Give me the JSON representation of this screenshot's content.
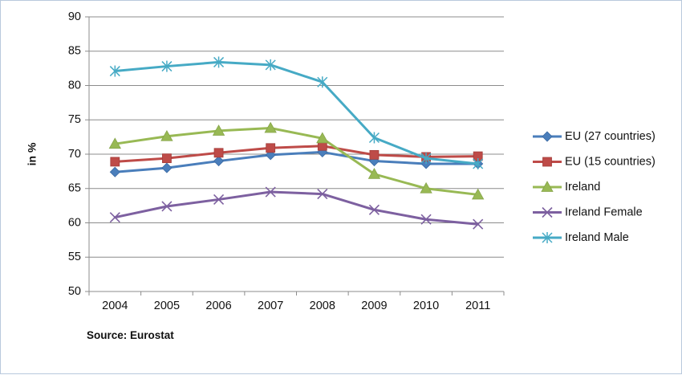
{
  "chart_data": {
    "type": "line",
    "title": "",
    "xlabel": "",
    "ylabel": "in %",
    "source": "Source: Eurostat",
    "categories": [
      "2004",
      "2005",
      "2006",
      "2007",
      "2008",
      "2009",
      "2010",
      "2011"
    ],
    "ylim": [
      50,
      90
    ],
    "yticks": [
      50,
      55,
      60,
      65,
      70,
      75,
      80,
      85,
      90
    ],
    "grid": true,
    "legend_position": "right",
    "series": [
      {
        "name": "EU (27 countries)",
        "color": "#4a7ebb",
        "marker": "diamond",
        "values": [
          67.4,
          68.0,
          69.0,
          69.9,
          70.3,
          69.0,
          68.6,
          68.6
        ]
      },
      {
        "name": "EU (15 countries)",
        "color": "#be4b48",
        "marker": "square",
        "values": [
          68.9,
          69.4,
          70.2,
          70.9,
          71.2,
          69.9,
          69.6,
          69.7
        ]
      },
      {
        "name": "Ireland",
        "color": "#98b954",
        "marker": "triangle",
        "values": [
          71.5,
          72.6,
          73.4,
          73.8,
          72.3,
          67.1,
          65.0,
          64.1
        ]
      },
      {
        "name": "Ireland Female",
        "color": "#7d60a0",
        "marker": "x",
        "values": [
          60.8,
          62.4,
          63.4,
          64.5,
          64.2,
          61.9,
          60.5,
          59.8
        ]
      },
      {
        "name": "Ireland Male",
        "color": "#46aac5",
        "marker": "star",
        "values": [
          82.1,
          82.8,
          83.4,
          83.0,
          80.5,
          72.4,
          69.4,
          68.6
        ]
      }
    ]
  }
}
